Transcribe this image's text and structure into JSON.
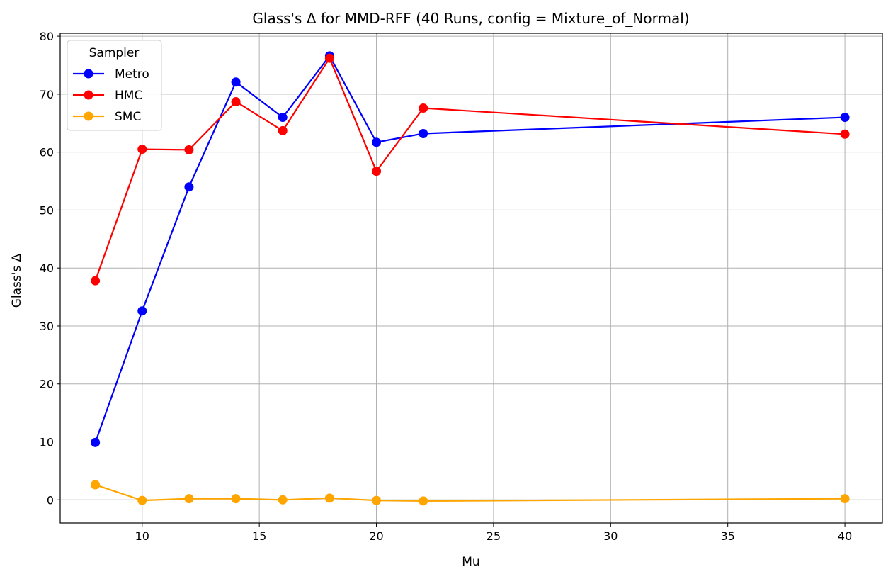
{
  "chart_data": {
    "type": "line",
    "title": "Glass's Δ for MMD-RFF (40 Runs, config = Mixture_of_Normal)",
    "xlabel": "Mu",
    "ylabel": "Glass's Δ",
    "xlim": [
      6.5,
      41.6
    ],
    "ylim": [
      -4,
      80.5
    ],
    "xticks": [
      10,
      15,
      20,
      25,
      30,
      35,
      40
    ],
    "yticks": [
      0,
      10,
      20,
      30,
      40,
      50,
      60,
      70,
      80
    ],
    "grid": true,
    "legend": {
      "title": "Sampler",
      "placement": "top-left"
    },
    "x": [
      8,
      10,
      12,
      14,
      16,
      18,
      20,
      22,
      40
    ],
    "series": [
      {
        "name": "Metro",
        "color": "#0000ff",
        "values": [
          9.9,
          32.6,
          54.0,
          72.1,
          66.0,
          76.6,
          61.7,
          63.2,
          66.0
        ]
      },
      {
        "name": "HMC",
        "color": "#ff0000",
        "values": [
          37.8,
          60.5,
          60.4,
          68.7,
          63.7,
          76.2,
          56.7,
          67.6,
          63.1
        ]
      },
      {
        "name": "SMC",
        "color": "#ffa500",
        "values": [
          2.6,
          -0.1,
          0.2,
          0.2,
          0.0,
          0.3,
          -0.1,
          -0.2,
          0.2
        ]
      }
    ]
  }
}
